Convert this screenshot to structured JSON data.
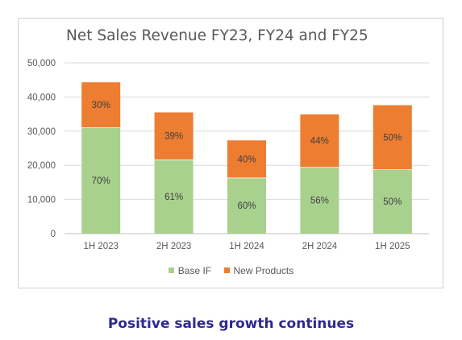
{
  "chart_data": {
    "type": "bar",
    "stacked": true,
    "title": "Net Sales Revenue FY23, FY24 and FY25",
    "categories": [
      "1H 2023",
      "2H 2023",
      "1H 2024",
      "2H 2024",
      "1H 2025"
    ],
    "series": [
      {
        "name": "Base IF",
        "color": "#a9d18e",
        "values": [
          31100,
          21700,
          16400,
          19500,
          18800
        ],
        "labels": [
          "70%",
          "61%",
          "60%",
          "56%",
          "50%"
        ]
      },
      {
        "name": "New Products",
        "color": "#ed7d31",
        "values": [
          13200,
          13800,
          10900,
          15400,
          18800
        ],
        "labels": [
          "30%",
          "39%",
          "40%",
          "44%",
          "50%"
        ]
      }
    ],
    "ylim": [
      0,
      50000
    ],
    "yticks": [
      0,
      10000,
      20000,
      30000,
      40000,
      50000
    ],
    "ytick_labels": [
      "0",
      "10,000",
      "20,000",
      "30,000",
      "40,000",
      "50,000"
    ],
    "grid": true,
    "legend": "bottom"
  },
  "caption": {
    "text": "Positive sales growth continues",
    "color": "#2e2a8f"
  },
  "colors": {
    "frame_border": "#d0d0d0",
    "grid": "#d9d9d9",
    "text": "#595959"
  }
}
